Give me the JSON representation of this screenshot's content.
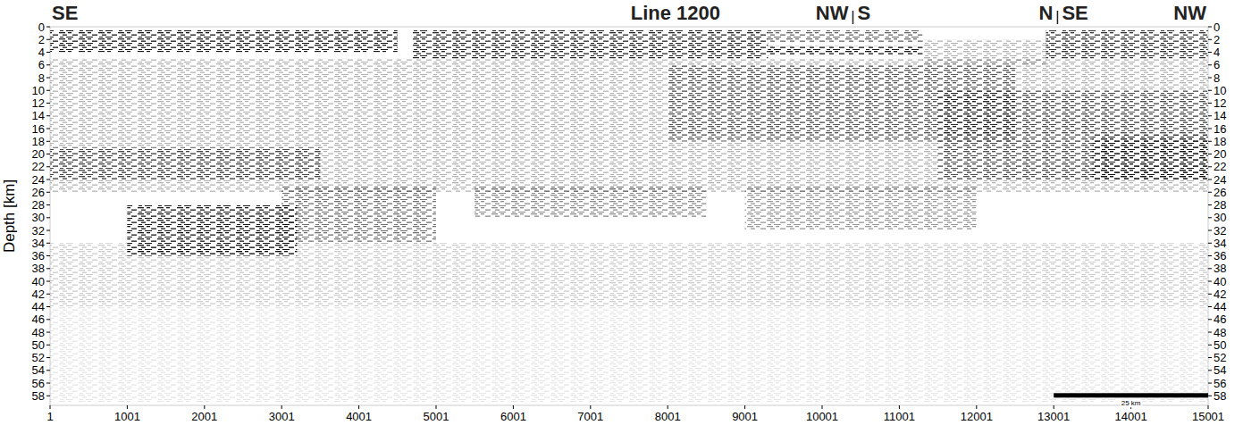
{
  "chart_data": {
    "type": "seismic_section",
    "title": "Line 1200",
    "y_label": "Depth [km]",
    "xlim": [
      1,
      15001
    ],
    "ylim": [
      0,
      59.5
    ],
    "xticks": [
      1,
      1001,
      2001,
      3001,
      4001,
      5001,
      6001,
      7001,
      8001,
      9001,
      10001,
      11001,
      12001,
      13001,
      14001,
      15001
    ],
    "yticks": [
      0,
      2,
      4,
      6,
      8,
      10,
      12,
      14,
      16,
      18,
      20,
      22,
      24,
      26,
      28,
      30,
      32,
      34,
      36,
      38,
      40,
      42,
      44,
      46,
      48,
      50,
      52,
      54,
      56,
      58
    ],
    "segments": [
      {
        "from": "SE",
        "to": "NW",
        "x0": 1,
        "x1": 10400
      },
      {
        "from": "S",
        "to": "N",
        "x0": 10400,
        "x1": 13050
      },
      {
        "from": "SE",
        "to": "NW",
        "x0": 13050,
        "x1": 15001
      }
    ],
    "zones": [
      {
        "x0": 1,
        "x1": 15001,
        "d0": 5,
        "d1": 26,
        "intensity": 0.3
      },
      {
        "x0": 1,
        "x1": 15001,
        "d0": 34,
        "d1": 44,
        "intensity": 0.2
      },
      {
        "x0": 1,
        "x1": 15001,
        "d0": 44,
        "d1": 59,
        "intensity": 0.1
      },
      {
        "x0": 1,
        "x1": 4500,
        "d0": 0.5,
        "d1": 4,
        "intensity": 0.9
      },
      {
        "x0": 4700,
        "x1": 9300,
        "d0": 0.5,
        "d1": 5,
        "intensity": 0.85
      },
      {
        "x0": 9300,
        "x1": 11300,
        "d0": 0.5,
        "d1": 2.5,
        "intensity": 0.6
      },
      {
        "x0": 9300,
        "x1": 11300,
        "d0": 3,
        "d1": 4.5,
        "intensity": 0.9
      },
      {
        "x0": 11300,
        "x1": 12900,
        "d0": 2,
        "d1": 6,
        "intensity": 0.3
      },
      {
        "x0": 12900,
        "x1": 15001,
        "d0": 0.5,
        "d1": 5,
        "intensity": 0.8
      },
      {
        "x0": 1,
        "x1": 3500,
        "d0": 19,
        "d1": 24,
        "intensity": 0.6
      },
      {
        "x0": 1000,
        "x1": 3200,
        "d0": 28,
        "d1": 36,
        "intensity": 0.9
      },
      {
        "x0": 3000,
        "x1": 5000,
        "d0": 25,
        "d1": 34,
        "intensity": 0.55
      },
      {
        "x0": 5500,
        "x1": 8500,
        "d0": 25,
        "d1": 30,
        "intensity": 0.45
      },
      {
        "x0": 8000,
        "x1": 12500,
        "d0": 6,
        "d1": 18,
        "intensity": 0.5
      },
      {
        "x0": 9000,
        "x1": 12000,
        "d0": 25,
        "d1": 32,
        "intensity": 0.4
      },
      {
        "x0": 11500,
        "x1": 15001,
        "d0": 10,
        "d1": 24,
        "intensity": 0.55
      },
      {
        "x0": 13500,
        "x1": 15001,
        "d0": 17,
        "d1": 24,
        "intensity": 0.7
      }
    ],
    "scale_bar": {
      "label": "25 km",
      "x0": 13001,
      "x1": 15001,
      "depth": 58
    }
  }
}
